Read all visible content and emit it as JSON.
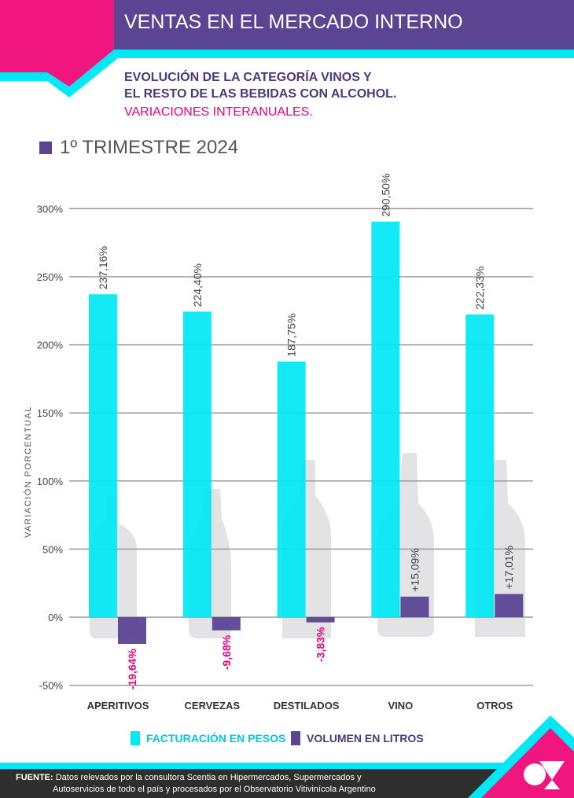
{
  "header": {
    "title": "VENTAS EN EL MERCADO INTERNO",
    "subtitle_line1": "EVOLUCIÓN DE LA CATEGORÍA VINOS Y",
    "subtitle_line2": "EL RESTO DE LAS BEBIDAS CON ALCOHOL.",
    "subtitle_line3": "VARIACIONES INTERANUALES.",
    "period": "1º TRIMESTRE 2024"
  },
  "colors": {
    "cyan": "#00e8f4",
    "purple": "#5b4593",
    "magenta": "#e6007e",
    "dark": "#2e2e2e",
    "grid": "#9a9a9a",
    "bottle": "#d9d9dc"
  },
  "legend": {
    "series1": "FACTURACIÓN EN PESOS",
    "series2": "VOLUMEN EN LITROS"
  },
  "footer": {
    "label": "FUENTE:",
    "line1": "Datos relevados por la consultora Scentia en Hipermercados, Supermercados y",
    "line2": "Autoservicios de todo el país y procesados por el Observatorio Vitivinícola Argentino"
  },
  "chart_data": {
    "type": "bar",
    "title": "1º TRIMESTRE 2024",
    "xlabel": "",
    "ylabel": "VARIACIÓN PORCENTUAL",
    "ylim": [
      -50,
      300
    ],
    "yticks": [
      300,
      250,
      200,
      150,
      100,
      50,
      0,
      -50
    ],
    "ytick_labels": [
      "300%",
      "250%",
      "200%",
      "150%",
      "100%",
      "50%",
      "0%",
      "-50%"
    ],
    "grid": true,
    "legend_position": "bottom-center",
    "categories": [
      "APERITIVOS",
      "CERVEZAS",
      "DESTILADOS",
      "VINO",
      "OTROS"
    ],
    "series": [
      {
        "name": "FACTURACIÓN EN PESOS",
        "color": "#00e8f4",
        "values": [
          237.16,
          224.4,
          187.75,
          290.5,
          222.33
        ],
        "labels": [
          "237,16%",
          "224,40%",
          "187,75%",
          "290,50%",
          "222,33%"
        ]
      },
      {
        "name": "VOLUMEN EN LITROS",
        "color": "#5b4593",
        "values": [
          -19.64,
          -9.68,
          -3.83,
          15.09,
          17.01
        ],
        "labels": [
          "-19,64%",
          "-9,68%",
          "-3,83%",
          "+15,09%",
          "+17,01%"
        ]
      }
    ]
  }
}
